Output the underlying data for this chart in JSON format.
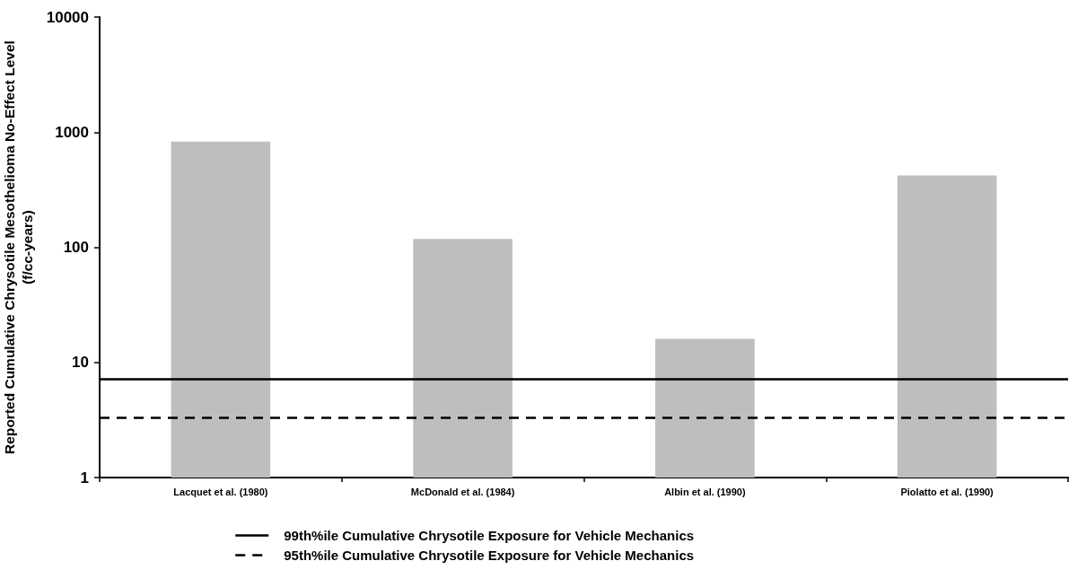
{
  "chart_data": {
    "type": "bar",
    "categories": [
      "Lacquet et al. (1980)",
      "McDonald et al. (1984)",
      "Albin et al. (1990)",
      "Piolatto et al. (1990)"
    ],
    "values": [
      830,
      118,
      16,
      420
    ],
    "color": "#bebebe",
    "ylabel": "Reported Cumulative Chrysotile Mesothelioma No-Effect Level\n(f/cc-years)",
    "ylim": [
      1,
      10000
    ],
    "yticks": [
      1,
      10,
      100,
      1000,
      10000
    ],
    "log": true,
    "grid": false,
    "legend": "bottom",
    "ref_lines": [
      {
        "axis": "y",
        "value": 7.2,
        "label": "99th%ile Cumulative Chrysotile Exposure for Vehicle Mechanics",
        "color": "#000000",
        "line_style": "solid"
      },
      {
        "axis": "y",
        "value": 3.3,
        "label": "95th%ile Cumulative Chrysotile Exposure for Vehicle Mechanics",
        "color": "#000000",
        "line_style": "dashed"
      }
    ]
  }
}
